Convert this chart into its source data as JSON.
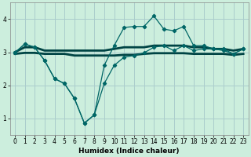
{
  "xlabel": "Humidex (Indice chaleur)",
  "bg_color": "#cceedd",
  "grid_color": "#aacccc",
  "line_color": "#006666",
  "line_color2": "#004444",
  "xlim": [
    -0.5,
    23.5
  ],
  "ylim": [
    0.5,
    4.5
  ],
  "yticks": [
    1,
    2,
    3,
    4
  ],
  "xticks": [
    0,
    1,
    2,
    3,
    4,
    5,
    6,
    7,
    8,
    9,
    10,
    11,
    12,
    13,
    14,
    15,
    16,
    17,
    18,
    19,
    20,
    21,
    22,
    23
  ],
  "line_wavy_x": [
    0,
    1,
    2,
    3,
    4,
    5,
    6,
    7,
    8,
    9,
    10,
    11,
    12,
    13,
    14,
    15,
    16,
    17,
    18,
    19,
    20,
    21,
    22,
    23
  ],
  "line_wavy_y": [
    2.98,
    3.25,
    3.15,
    2.75,
    2.2,
    2.05,
    1.6,
    0.85,
    1.1,
    2.6,
    3.2,
    3.75,
    3.78,
    3.78,
    4.1,
    3.7,
    3.65,
    3.78,
    3.2,
    3.2,
    3.1,
    3.1,
    2.95,
    3.1
  ],
  "line_lower_x": [
    0,
    1,
    2,
    3,
    4,
    5,
    6,
    7,
    8,
    9,
    10,
    11,
    12,
    13,
    14,
    15,
    16,
    17,
    18,
    19,
    20,
    21,
    22,
    23
  ],
  "line_lower_y": [
    2.98,
    3.25,
    3.15,
    2.75,
    2.2,
    2.05,
    1.6,
    0.85,
    1.1,
    2.05,
    2.6,
    2.85,
    2.9,
    2.98,
    3.15,
    3.2,
    3.05,
    3.2,
    3.05,
    3.1,
    3.1,
    3.05,
    2.95,
    3.1
  ],
  "line_flat1_x": [
    0,
    1,
    2,
    3,
    4,
    5,
    6,
    7,
    8,
    9,
    10,
    11,
    12,
    13,
    14,
    15,
    16,
    17,
    18,
    19,
    20,
    21,
    22,
    23
  ],
  "line_flat1_y": [
    3.0,
    3.15,
    3.15,
    3.05,
    3.05,
    3.05,
    3.05,
    3.05,
    3.05,
    3.05,
    3.1,
    3.15,
    3.15,
    3.15,
    3.2,
    3.2,
    3.2,
    3.2,
    3.15,
    3.15,
    3.1,
    3.1,
    3.05,
    3.1
  ],
  "line_flat2_x": [
    0,
    1,
    2,
    3,
    4,
    5,
    6,
    7,
    8,
    9,
    10,
    11,
    12,
    13,
    14,
    15,
    16,
    17,
    18,
    19,
    20,
    21,
    22,
    23
  ],
  "line_flat2_y": [
    2.95,
    2.98,
    2.98,
    2.95,
    2.95,
    2.95,
    2.9,
    2.9,
    2.9,
    2.9,
    2.9,
    2.92,
    2.92,
    2.95,
    2.97,
    2.97,
    2.97,
    2.97,
    2.95,
    2.95,
    2.95,
    2.95,
    2.92,
    2.95
  ]
}
